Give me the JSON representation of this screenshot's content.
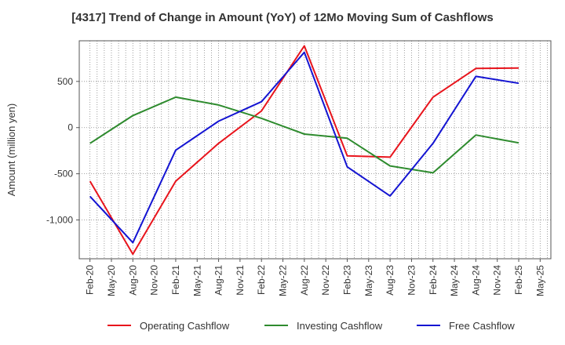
{
  "chart_data": {
    "type": "line",
    "title": "[4317]  Trend of Change in Amount (YoY) of 12Mo Moving Sum of Cashflows",
    "xlabel": "",
    "ylabel": "Amount (million yen)",
    "ylim": [
      -1420,
      940
    ],
    "yticks": [
      500,
      0,
      -500,
      -1000
    ],
    "ytick_labels": [
      "500",
      "0",
      "-500",
      "-1,000"
    ],
    "x_labels": [
      "Feb-20",
      "May-20",
      "Aug-20",
      "Nov-20",
      "Feb-21",
      "May-21",
      "Aug-21",
      "Nov-21",
      "Feb-22",
      "May-22",
      "Aug-22",
      "Nov-22",
      "Feb-23",
      "May-23",
      "Aug-23",
      "Nov-23",
      "Feb-24",
      "May-24",
      "Aug-24",
      "Nov-24",
      "Feb-25",
      "May-25"
    ],
    "grid": true,
    "legend_position": "bottom",
    "series": [
      {
        "name": "Operating Cashflow",
        "color": "#e8141c",
        "points": [
          [
            0,
            -580
          ],
          [
            2,
            -1370
          ],
          [
            4,
            -580
          ],
          [
            6,
            -170
          ],
          [
            8,
            180
          ],
          [
            10,
            885
          ],
          [
            12,
            -305
          ],
          [
            14,
            -320
          ],
          [
            16,
            330
          ],
          [
            18,
            640
          ],
          [
            20,
            645
          ]
        ]
      },
      {
        "name": "Investing Cashflow",
        "color": "#2e8b2e",
        "points": [
          [
            0,
            -170
          ],
          [
            2,
            130
          ],
          [
            4,
            330
          ],
          [
            6,
            245
          ],
          [
            8,
            100
          ],
          [
            10,
            -70
          ],
          [
            12,
            -115
          ],
          [
            14,
            -415
          ],
          [
            16,
            -490
          ],
          [
            18,
            -80
          ],
          [
            20,
            -165
          ]
        ]
      },
      {
        "name": "Free Cashflow",
        "color": "#1414d2",
        "points": [
          [
            0,
            -745
          ],
          [
            2,
            -1245
          ],
          [
            4,
            -245
          ],
          [
            6,
            70
          ],
          [
            8,
            280
          ],
          [
            10,
            815
          ],
          [
            12,
            -425
          ],
          [
            14,
            -740
          ],
          [
            16,
            -170
          ],
          [
            18,
            555
          ],
          [
            20,
            480
          ]
        ]
      }
    ]
  }
}
